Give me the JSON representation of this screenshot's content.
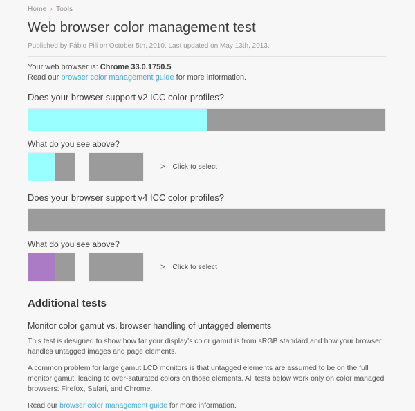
{
  "breadcrumb": {
    "home": "Home",
    "separator": "›",
    "tools": "Tools"
  },
  "header": {
    "title": "Web browser color management test",
    "published": "Published by Fábio Pili on October 5th, 2010. Last updated on May 13th, 2013."
  },
  "browser_info": {
    "label": "Your web browser is: ",
    "browser": "Chrome 33.0.1750.5",
    "read_our": "Read our ",
    "guide_link": "browser color management guide",
    "more_info": " for more information."
  },
  "tests": {
    "v2": {
      "question": "Does your browser support v2 ICC color profiles?",
      "subquestion": "What do you see above?",
      "chevron": ">",
      "click_to_select": "Click to select"
    },
    "v4": {
      "question": "Does your browser support v4 ICC color profiles?",
      "subquestion": "What do you see above?",
      "chevron": ">",
      "click_to_select": "Click to select"
    }
  },
  "additional": {
    "heading": "Additional tests",
    "subheading": "Monitor color gamut vs. browser handling of untagged elements",
    "para1": "This test is designed to show how far your display's color gamut is from sRGB standard and how your browser handles untagged images and page elements.",
    "para2": "A common problem for large gamut LCD monitors is that untagged elements are assumed to be on the full monitor gamut, leading to over-saturated colors on those elements. All tests below work only on color managed browsers: Firefox, Safari, and Chrome.",
    "read_our": "Read our ",
    "guide_link": "browser color management guide",
    "more_info": " for more information."
  },
  "colors": {
    "cyan": "#99ffff",
    "gray": "#9b9b9b",
    "purple": "#ab7cc5",
    "link_blue": "#45aed5",
    "background": "#f7f7f7"
  }
}
